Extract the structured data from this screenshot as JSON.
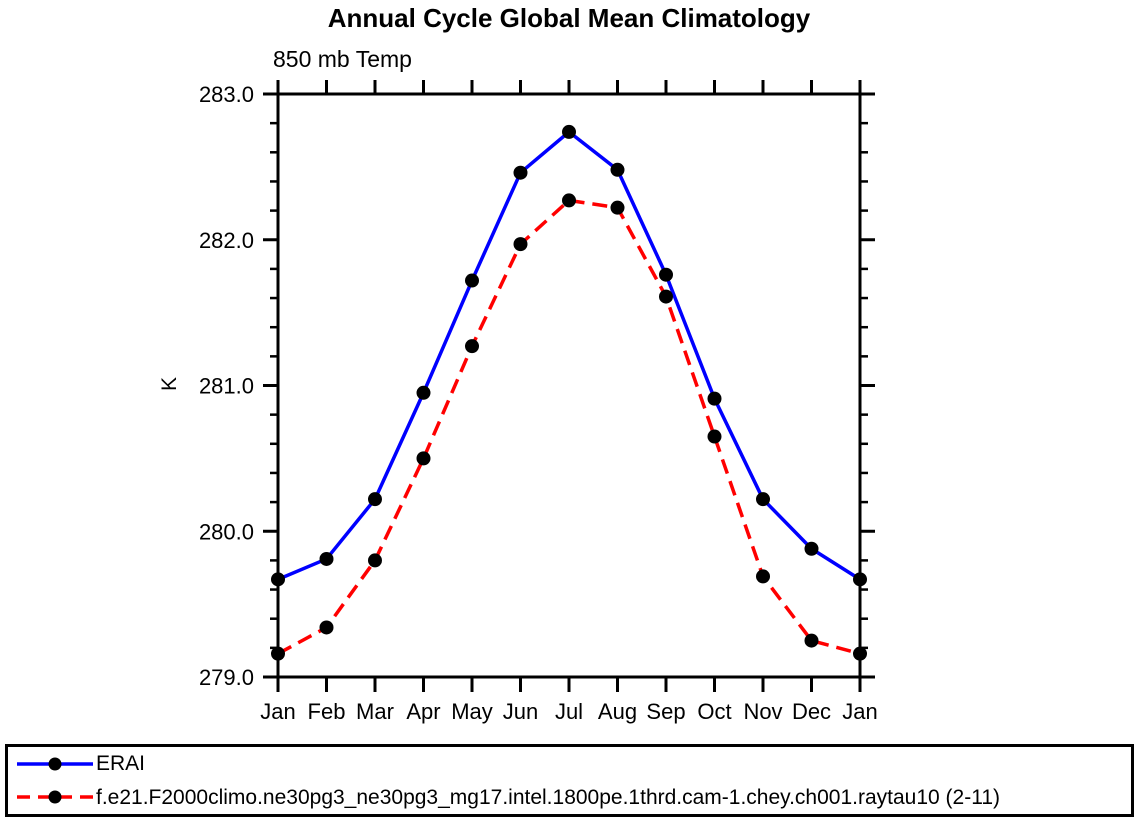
{
  "chart_data": {
    "type": "line",
    "title": "Annual Cycle Global Mean Climatology",
    "subtitle": "850 mb Temp",
    "ylabel": "K",
    "xlabel": "",
    "categories": [
      "Jan",
      "Feb",
      "Mar",
      "Apr",
      "May",
      "Jun",
      "Jul",
      "Aug",
      "Sep",
      "Oct",
      "Nov",
      "Dec",
      "Jan"
    ],
    "ylim": [
      279.0,
      283.0
    ],
    "y_major_step": 1.0,
    "y_minor_step": 0.2,
    "y_tick_decimals": 1,
    "grid": false,
    "legend_position": "bottom",
    "axis_color": "#000000",
    "marker_color": "#000000",
    "marker_shape": "filled-circle",
    "series": [
      {
        "name": "ERAI",
        "color": "#0000ff",
        "line_style": "solid",
        "values": [
          279.67,
          279.81,
          280.22,
          280.95,
          281.72,
          282.46,
          282.74,
          282.48,
          281.76,
          280.91,
          280.22,
          279.88,
          279.67
        ]
      },
      {
        "name": "f.e21.F2000climo.ne30pg3_ne30pg3_mg17.intel.1800pe.1thrd.cam-1.chey.ch001.raytau10 (2-11)",
        "color": "#ff0000",
        "line_style": "dashed",
        "values": [
          279.16,
          279.34,
          279.8,
          280.5,
          281.27,
          281.97,
          282.27,
          282.22,
          281.61,
          280.65,
          279.69,
          279.25,
          279.16
        ]
      }
    ]
  }
}
